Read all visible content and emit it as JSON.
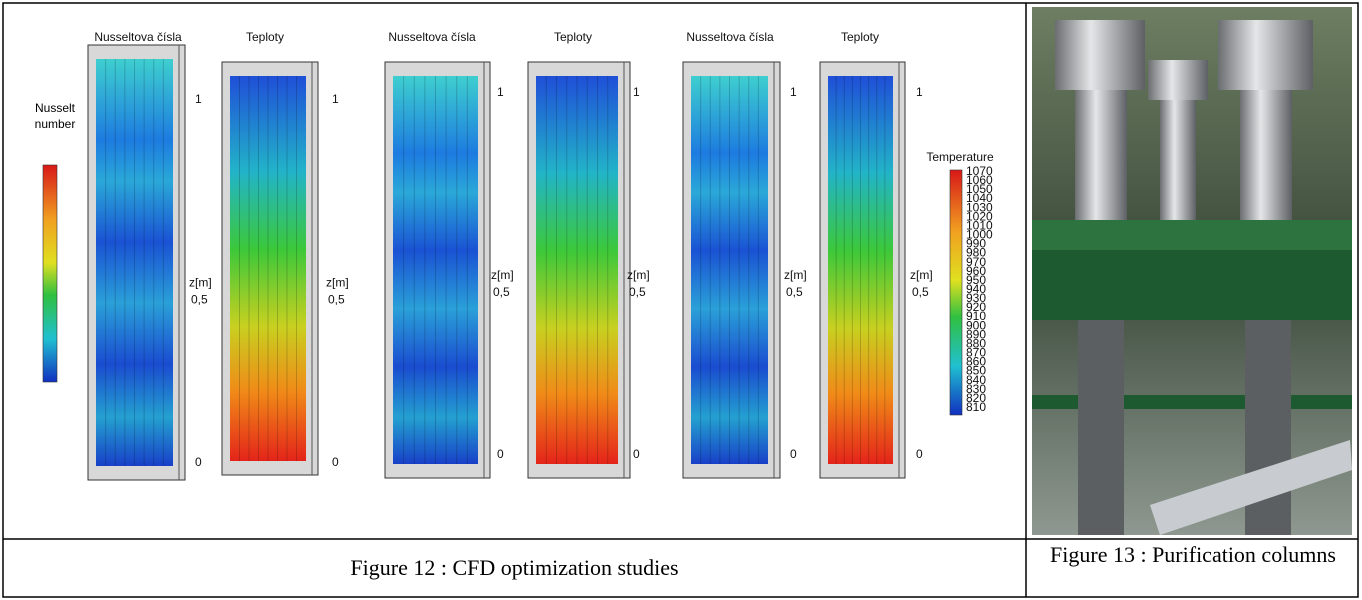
{
  "figure12": {
    "panels": [
      {
        "title": "Nusseltova čísla",
        "z_labels": {
          "top": "1",
          "unit": "z[m]",
          "middle": "0,5",
          "bottom": "0"
        }
      },
      {
        "title": "Teploty",
        "z_labels": {
          "top": "1",
          "unit": "z[m]",
          "middle": "0,5",
          "bottom": "0"
        }
      },
      {
        "title": "Nusseltova čísla",
        "z_labels": {
          "top": "1",
          "unit": "z[m]",
          "middle": "0,5",
          "bottom": "0"
        }
      },
      {
        "title": "Teploty",
        "z_labels": {
          "top": "1",
          "unit": "z[m]",
          "middle": "0,5",
          "bottom": "0"
        }
      },
      {
        "title": "Nusseltova čísla",
        "z_labels": {
          "top": "1",
          "unit": "z[m]",
          "middle": "0,5",
          "bottom": "0"
        }
      },
      {
        "title": "Teploty",
        "z_labels": {
          "top": "1",
          "unit": "z[m]",
          "middle": "0,5",
          "bottom": "0"
        }
      }
    ],
    "nusselt_legend": {
      "title": "Nusselt number"
    },
    "temperature_legend": {
      "title": "Temperature",
      "labels": [
        1070,
        1060,
        1050,
        1040,
        1030,
        1020,
        1010,
        1000,
        990,
        980,
        970,
        960,
        950,
        940,
        930,
        920,
        910,
        900,
        890,
        880,
        870,
        860,
        850,
        840,
        830,
        820,
        810
      ]
    }
  },
  "captions": [
    "Figure 12 : CFD optimization studies",
    "Figure 13 : Purification columns"
  ]
}
